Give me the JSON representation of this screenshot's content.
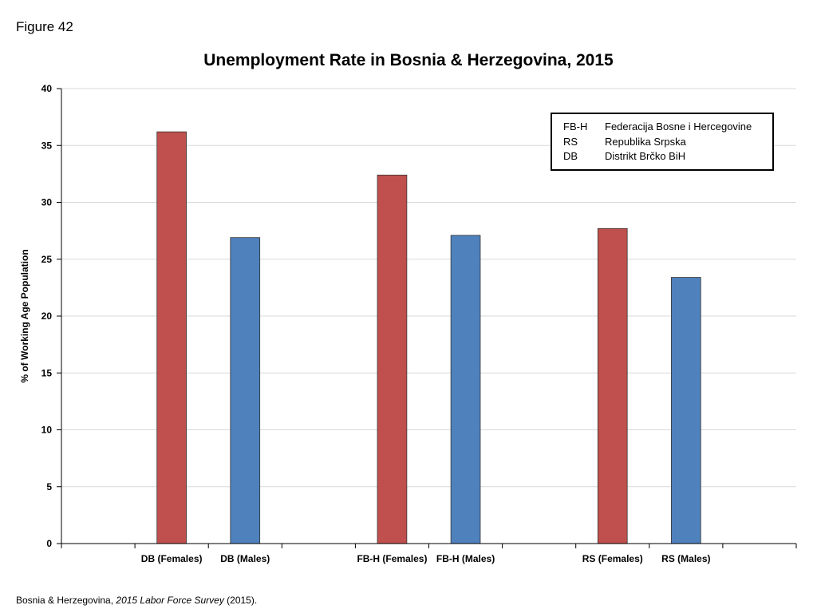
{
  "figure_label": "Figure 42",
  "source": {
    "prefix": "Bosnia & Herzegovina, ",
    "title": "2015 Labor Force Survey",
    "suffix": " (2015)."
  },
  "legend": [
    {
      "abbr": "FB-H",
      "name": "Federacija Bosne i Hercegovine"
    },
    {
      "abbr": "RS",
      "name": "Republika Srpska"
    },
    {
      "abbr": "DB",
      "name": "Distrikt Brčko BiH"
    }
  ],
  "colors": {
    "female": "#C0504D",
    "male": "#4F81BD",
    "grid": "#D9D9D9",
    "axis": "#000000"
  },
  "chart_data": {
    "type": "bar",
    "title": "Unemployment Rate in Bosnia & Herzegovina, 2015",
    "xlabel": "",
    "ylabel": "% of Working Age Population",
    "ylim": [
      0,
      40
    ],
    "yticks": [
      0,
      5,
      10,
      15,
      20,
      25,
      30,
      35,
      40
    ],
    "grid": true,
    "categories": [
      "",
      "DB (Females)",
      "DB (Males)",
      "",
      "FB-H (Females)",
      "FB-H (Males)",
      "",
      "RS (Females)",
      "RS (Males)",
      ""
    ],
    "values": [
      null,
      36.2,
      26.9,
      null,
      32.4,
      27.1,
      null,
      27.7,
      23.4,
      null
    ],
    "bar_colors": [
      null,
      "#C0504D",
      "#4F81BD",
      null,
      "#C0504D",
      "#4F81BD",
      null,
      "#C0504D",
      "#4F81BD",
      null
    ]
  }
}
